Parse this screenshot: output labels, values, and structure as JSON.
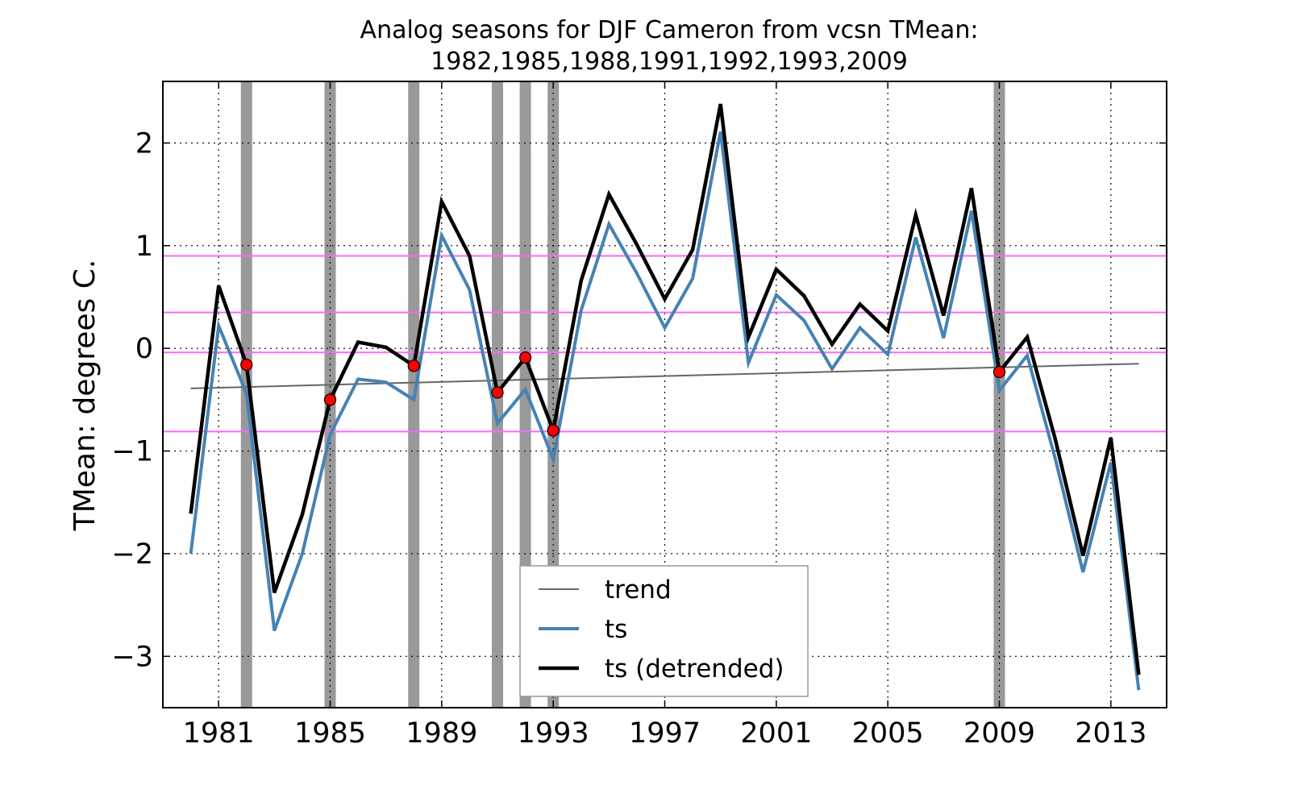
{
  "chart_data": {
    "type": "line",
    "title_lines": [
      "Analog seasons for DJF Cameron from vcsn TMean:",
      "1982,1985,1988,1991,1992,1993,2009"
    ],
    "xlabel": "",
    "ylabel": "TMean: degrees C.",
    "xlim": [
      1979,
      2015
    ],
    "ylim": [
      -3.5,
      2.6
    ],
    "x_ticks": [
      1981,
      1985,
      1989,
      1993,
      1997,
      2001,
      2005,
      2009,
      2013
    ],
    "y_ticks": [
      2,
      1,
      0,
      -1,
      -2,
      -3
    ],
    "y_tick_labels": [
      "2",
      "1",
      "0",
      "−1",
      "−2",
      "−3"
    ],
    "grid": true,
    "grid_style": "dotted",
    "x": [
      1980,
      1981,
      1982,
      1983,
      1984,
      1985,
      1986,
      1987,
      1988,
      1989,
      1990,
      1991,
      1992,
      1993,
      1994,
      1995,
      1996,
      1997,
      1998,
      1999,
      2000,
      2001,
      2002,
      2003,
      2004,
      2005,
      2006,
      2007,
      2008,
      2009,
      2010,
      2011,
      2012,
      2013,
      2014
    ],
    "series": [
      {
        "name": "trend",
        "color": "#666666",
        "x": [
          1980,
          2014
        ],
        "values": [
          -0.39,
          -0.15
        ]
      },
      {
        "name": "ts",
        "color": "#4682b4",
        "values": [
          -2.0,
          0.22,
          -0.44,
          -2.75,
          -2.0,
          -0.84,
          -0.3,
          -0.33,
          -0.5,
          1.1,
          0.57,
          -0.73,
          -0.4,
          -1.08,
          0.37,
          1.21,
          0.73,
          0.2,
          0.68,
          2.11,
          -0.14,
          0.52,
          0.27,
          -0.2,
          0.2,
          -0.06,
          1.08,
          0.1,
          1.34,
          -0.41,
          -0.07,
          -1.07,
          -2.18,
          -1.11,
          -3.33
        ]
      },
      {
        "name": "ts (detrended)",
        "color": "#000000",
        "values": [
          -1.61,
          0.61,
          -0.16,
          -2.38,
          -1.62,
          -0.5,
          0.06,
          0.01,
          -0.17,
          1.43,
          0.9,
          -0.43,
          -0.09,
          -0.8,
          0.66,
          1.5,
          1.01,
          0.48,
          0.96,
          2.38,
          0.11,
          0.77,
          0.51,
          0.04,
          0.43,
          0.17,
          1.3,
          0.32,
          1.56,
          -0.23,
          0.11,
          -0.88,
          -2.02,
          -0.87,
          -3.18
        ]
      }
    ],
    "analog_years": [
      1982,
      1985,
      1988,
      1991,
      1992,
      1993,
      2009
    ],
    "analog_band_color": "#999999",
    "analog_marker_color": "#ff0000",
    "thresholds": [
      0.9,
      0.35,
      -0.04,
      -0.81
    ],
    "threshold_color": "#ff66ff",
    "legend": {
      "location": "lower-center",
      "entries": [
        "trend",
        "ts",
        "ts (detrended)"
      ]
    }
  }
}
